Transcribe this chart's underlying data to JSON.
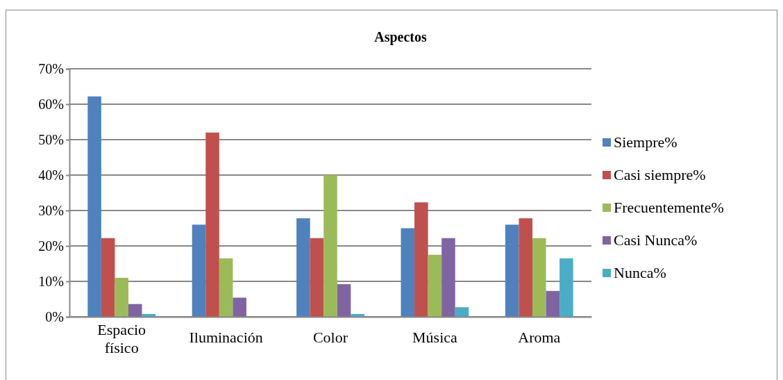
{
  "chart_data": {
    "type": "bar",
    "title": "Aspectos",
    "categories": [
      "Espacio físico",
      "Iluminación",
      "Color",
      "Música",
      "Aroma"
    ],
    "series": [
      {
        "name": "Siempre%",
        "color": "#4f81bd",
        "values": [
          62.2,
          26.0,
          27.8,
          25.0,
          26.0
        ]
      },
      {
        "name": "Casi siempre%",
        "color": "#c0504d",
        "values": [
          22.2,
          52.0,
          22.2,
          32.3,
          27.8
        ]
      },
      {
        "name": "Frecuentemente%",
        "color": "#9bbb59",
        "values": [
          11.0,
          16.5,
          40.0,
          17.5,
          22.2
        ]
      },
      {
        "name": "Casi Nunca%",
        "color": "#8064a2",
        "values": [
          3.6,
          5.4,
          9.2,
          22.2,
          7.3
        ]
      },
      {
        "name": "Nunca%",
        "color": "#4bacc6",
        "values": [
          0.8,
          0,
          0.8,
          2.7,
          16.5
        ]
      }
    ],
    "ylim": [
      0,
      70
    ],
    "yticks": [
      {
        "value": 0,
        "label": "0%"
      },
      {
        "value": 10,
        "label": "10%"
      },
      {
        "value": 20,
        "label": "20%"
      },
      {
        "value": 30,
        "label": "30%"
      },
      {
        "value": 40,
        "label": "40%"
      },
      {
        "value": 50,
        "label": "50%"
      },
      {
        "value": 60,
        "label": "60%"
      },
      {
        "value": 70,
        "label": "70%"
      }
    ],
    "grid": "y",
    "legend": "right"
  }
}
